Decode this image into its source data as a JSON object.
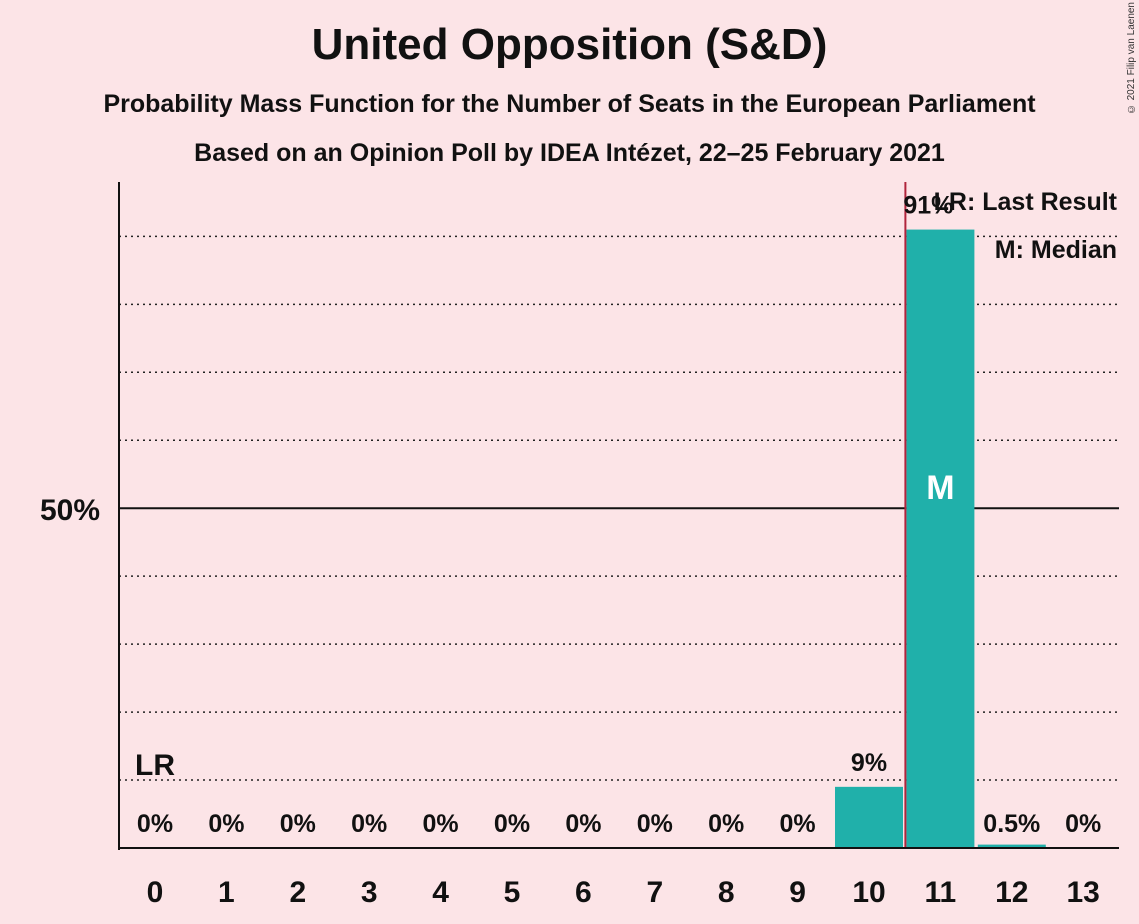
{
  "title": "United Opposition (S&D)",
  "subtitle1": "Probability Mass Function for the Number of Seats in the European Parliament",
  "subtitle2": "Based on an Opinion Poll by IDEA Intézet, 22–25 February 2021",
  "copyright": "© 2021 Filip van Laenen",
  "chart_data": {
    "type": "bar",
    "categories": [
      "0",
      "1",
      "2",
      "3",
      "4",
      "5",
      "6",
      "7",
      "8",
      "9",
      "10",
      "11",
      "12",
      "13"
    ],
    "values": [
      0,
      0,
      0,
      0,
      0,
      0,
      0,
      0,
      0,
      0,
      9,
      91,
      0.5,
      0
    ],
    "labels": [
      "0%",
      "0%",
      "0%",
      "0%",
      "0%",
      "0%",
      "0%",
      "0%",
      "0%",
      "0%",
      "9%",
      "91%",
      "0.5%",
      "0%"
    ],
    "ylim": [
      0,
      98
    ],
    "y_tick_label": "50%",
    "y_tick_value": 50,
    "dotted_gridlines": [
      10,
      20,
      30,
      40,
      60,
      70,
      80,
      90
    ],
    "bar_color": "#20b0aa",
    "last_result_seat": 0,
    "last_result_marker": "LR",
    "median_seat": 11,
    "median_marker": "M",
    "median_line_color": "#b0243c",
    "legend": {
      "last_result": "LR: Last Result",
      "median": "M: Median",
      "position": "top-right"
    }
  }
}
